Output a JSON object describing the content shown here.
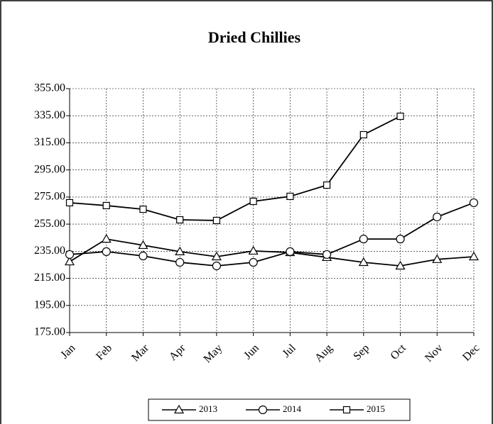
{
  "chart_data": {
    "type": "line",
    "title": "Dried Chillies",
    "categories": [
      "Jan",
      "Feb",
      "Mar",
      "Apr",
      "May",
      "Jun",
      "Jul",
      "Aug",
      "Sep",
      "Oct",
      "Nov",
      "Dec"
    ],
    "series": [
      {
        "name": "2013",
        "color": "#000000",
        "marker": "triangle",
        "values": [
          227.3,
          244,
          239.4,
          234.7,
          231,
          235.2,
          234.1,
          230.5,
          226.8,
          224.2,
          229,
          231
        ]
      },
      {
        "name": "2014",
        "color": "#000000",
        "marker": "circle",
        "values": [
          232.6,
          234.7,
          231.5,
          226.8,
          224.2,
          226.8,
          234.7,
          232.6,
          244,
          244,
          260.3,
          270.8
        ]
      },
      {
        "name": "2015",
        "color": "#000000",
        "marker": "square",
        "values": [
          270.8,
          268.7,
          266,
          258.2,
          257.7,
          271.8,
          275.5,
          283.8,
          321,
          334.6,
          null,
          null
        ]
      }
    ],
    "ylim": [
      175,
      355
    ],
    "yticks": [
      {
        "value": 175,
        "label": "175.00"
      },
      {
        "value": 195,
        "label": "195.00"
      },
      {
        "value": 215,
        "label": "215.00"
      },
      {
        "value": 235,
        "label": "235.00"
      },
      {
        "value": 255,
        "label": "255.00"
      },
      {
        "value": 275,
        "label": "275.00"
      },
      {
        "value": 295,
        "label": "295.00"
      },
      {
        "value": 315,
        "label": "315.00"
      },
      {
        "value": 335,
        "label": "335.00"
      },
      {
        "value": 355,
        "label": "355.00"
      }
    ],
    "grid": true,
    "legend": "bottom"
  }
}
